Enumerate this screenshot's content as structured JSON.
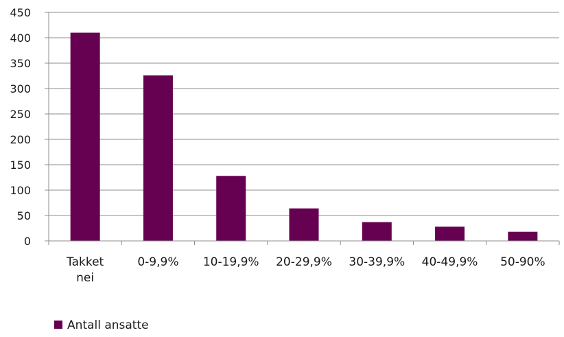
{
  "chart_data": {
    "type": "bar",
    "categories": [
      "Takket nei",
      "0-9,9%",
      "10-19,9%",
      "20-29,9%",
      "30-39,9%",
      "40-49,9%",
      "50-90%"
    ],
    "series": [
      {
        "name": "Antall ansatte",
        "values": [
          410,
          326,
          128,
          64,
          37,
          28,
          18
        ],
        "color": "#660050"
      }
    ],
    "ylim": [
      0,
      450
    ],
    "yticks": [
      0,
      50,
      100,
      150,
      200,
      250,
      300,
      350,
      400,
      450
    ],
    "grid": true,
    "legend": "bottom-left",
    "title": "",
    "xlabel": "",
    "ylabel": ""
  }
}
